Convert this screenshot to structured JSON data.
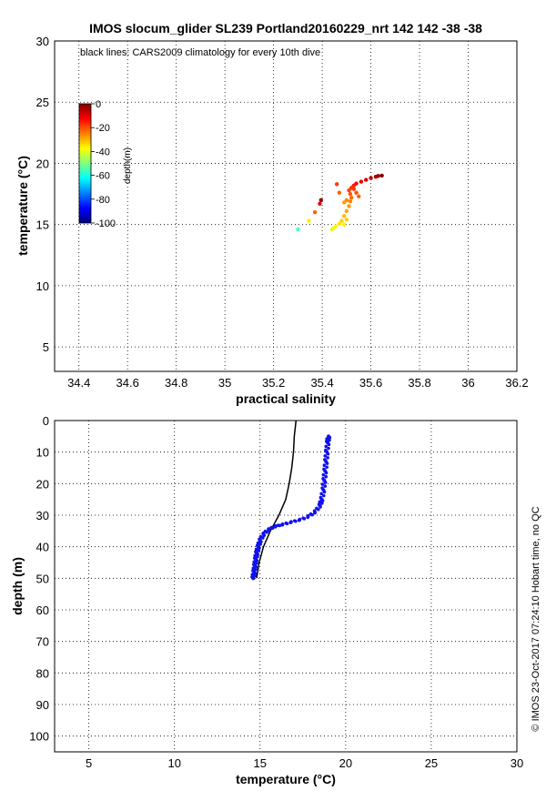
{
  "chart_data": [
    {
      "type": "scatter",
      "title": "IMOS slocum_glider SL239 Portland20160229_nrt 142  142  -38  -38",
      "annotation": "black lines: CARS2009 climatology for every 10th dive",
      "xlabel": "practical salinity",
      "ylabel": "temperature (°C)",
      "xlim": [
        34.3,
        36.2
      ],
      "ylim": [
        3,
        30
      ],
      "xticks": [
        "34.4",
        "34.6",
        "34.8",
        "35",
        "35.2",
        "35.4",
        "35.6",
        "35.8",
        "36",
        "36.2"
      ],
      "yticks": [
        "5",
        "10",
        "15",
        "20",
        "25",
        "30"
      ],
      "grid": true,
      "colorbar": {
        "label": "depth(m)",
        "range": [
          -100,
          0
        ],
        "ticks": [
          "0",
          "-20",
          "-40",
          "-60",
          "-80",
          "-100"
        ],
        "colormap": [
          "#000080",
          "#0000ff",
          "#0080ff",
          "#00ffff",
          "#80ff80",
          "#ffff00",
          "#ff8000",
          "#ff0000",
          "#800000"
        ]
      },
      "points": [
        {
          "x": 35.645,
          "y": 19.0,
          "d": 0
        },
        {
          "x": 35.63,
          "y": 18.97,
          "d": -2
        },
        {
          "x": 35.62,
          "y": 18.9,
          "d": -4
        },
        {
          "x": 35.6,
          "y": 18.8,
          "d": -7
        },
        {
          "x": 35.58,
          "y": 18.65,
          "d": -9
        },
        {
          "x": 35.56,
          "y": 18.5,
          "d": -11
        },
        {
          "x": 35.54,
          "y": 18.35,
          "d": -13
        },
        {
          "x": 35.53,
          "y": 18.2,
          "d": -15
        },
        {
          "x": 35.52,
          "y": 18.0,
          "d": -17
        },
        {
          "x": 35.51,
          "y": 17.8,
          "d": -19
        },
        {
          "x": 35.515,
          "y": 17.5,
          "d": -21
        },
        {
          "x": 35.52,
          "y": 17.2,
          "d": -23
        },
        {
          "x": 35.515,
          "y": 16.9,
          "d": -25
        },
        {
          "x": 35.51,
          "y": 16.5,
          "d": -27
        },
        {
          "x": 35.5,
          "y": 16.1,
          "d": -29
        },
        {
          "x": 35.49,
          "y": 15.7,
          "d": -31
        },
        {
          "x": 35.48,
          "y": 15.3,
          "d": -33
        },
        {
          "x": 35.47,
          "y": 15.05,
          "d": -35
        },
        {
          "x": 35.455,
          "y": 14.85,
          "d": -37
        },
        {
          "x": 35.445,
          "y": 14.7,
          "d": -39
        },
        {
          "x": 35.44,
          "y": 14.6,
          "d": -41
        },
        {
          "x": 35.54,
          "y": 17.6,
          "d": -20
        },
        {
          "x": 35.55,
          "y": 17.3,
          "d": -22
        },
        {
          "x": 35.53,
          "y": 17.9,
          "d": -18
        },
        {
          "x": 35.5,
          "y": 17.0,
          "d": -26
        },
        {
          "x": 35.47,
          "y": 17.6,
          "d": -22
        },
        {
          "x": 35.46,
          "y": 18.3,
          "d": -18
        },
        {
          "x": 35.49,
          "y": 16.8,
          "d": -28
        },
        {
          "x": 35.5,
          "y": 15.4,
          "d": -33
        },
        {
          "x": 35.49,
          "y": 15.0,
          "d": -36
        },
        {
          "x": 35.395,
          "y": 17.0,
          "d": -3
        },
        {
          "x": 35.39,
          "y": 16.7,
          "d": -10
        },
        {
          "x": 35.37,
          "y": 16.0,
          "d": -22
        },
        {
          "x": 35.345,
          "y": 15.3,
          "d": -36
        },
        {
          "x": 35.3,
          "y": 14.6,
          "d": -55
        }
      ]
    },
    {
      "type": "scatter",
      "xlabel": "temperature (°C)",
      "ylabel": "depth (m)",
      "xlim": [
        3,
        30
      ],
      "ylim": [
        0,
        105
      ],
      "xticks": [
        "5",
        "10",
        "15",
        "20",
        "25",
        "30"
      ],
      "yticks": [
        "0",
        "10",
        "20",
        "30",
        "40",
        "50",
        "60",
        "70",
        "80",
        "90",
        "100"
      ],
      "grid": true,
      "climatology_line": [
        [
          17.1,
          0
        ],
        [
          17.0,
          5
        ],
        [
          16.95,
          10
        ],
        [
          16.85,
          15
        ],
        [
          16.7,
          20
        ],
        [
          16.5,
          25
        ],
        [
          16.1,
          30
        ],
        [
          15.6,
          35
        ],
        [
          15.2,
          40
        ],
        [
          14.95,
          45
        ],
        [
          14.8,
          50
        ]
      ],
      "profile": [
        [
          19.0,
          5
        ],
        [
          18.95,
          7
        ],
        [
          18.9,
          10
        ],
        [
          18.85,
          13
        ],
        [
          18.8,
          16
        ],
        [
          18.75,
          19
        ],
        [
          18.7,
          22
        ],
        [
          18.6,
          25
        ],
        [
          18.5,
          27
        ],
        [
          18.2,
          29
        ],
        [
          17.8,
          30.5
        ],
        [
          17.3,
          31.5
        ],
        [
          16.8,
          32.2
        ],
        [
          16.3,
          33
        ],
        [
          15.9,
          33.5
        ],
        [
          15.5,
          34.5
        ],
        [
          15.2,
          36
        ],
        [
          15.0,
          38
        ],
        [
          14.9,
          40
        ],
        [
          14.8,
          42
        ],
        [
          14.75,
          44
        ],
        [
          14.7,
          46
        ],
        [
          14.65,
          48
        ],
        [
          14.6,
          50
        ]
      ],
      "side_text": "© IMOS 23-Oct-2017 07:24:10 Hobart time, no QC"
    }
  ]
}
